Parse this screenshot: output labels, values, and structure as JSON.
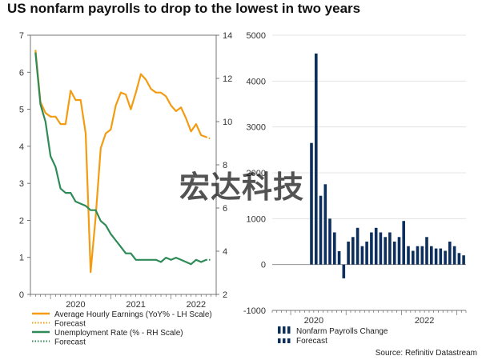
{
  "title": "US nonfarm payrolls to drop to the lowest in two years",
  "source": "Source: Refinitiv Datastream",
  "watermark": "宏达科技",
  "colors": {
    "earnings": "#f39c12",
    "unemployment": "#2e8b57",
    "payrolls": "#0d2f5e",
    "axis": "#666666",
    "grid": "#dddddd"
  },
  "chart_data": [
    {
      "type": "line",
      "title": "",
      "xlabel": "",
      "x_ticks": [
        "2020",
        "2021",
        "2022"
      ],
      "x_range": [
        "2019-09",
        "2022-10"
      ],
      "y_left_range": [
        0,
        7
      ],
      "y_left_ticks": [
        0,
        1,
        2,
        3,
        4,
        5,
        6,
        7
      ],
      "y_right_range": [
        2,
        14
      ],
      "y_right_ticks": [
        2,
        4,
        6,
        8,
        10,
        12,
        14
      ],
      "grid": false,
      "legend_position": "bottom-left",
      "series": [
        {
          "name": "Average Hourly Earnings (YoY% - LH Scale)",
          "axis": "left",
          "color": "#f39c12",
          "x": [
            "2019-10",
            "2019-11",
            "2019-12",
            "2020-01",
            "2020-02",
            "2020-03",
            "2020-04",
            "2020-05",
            "2020-06",
            "2020-07",
            "2020-08",
            "2020-09",
            "2020-10",
            "2020-11",
            "2020-12",
            "2021-01",
            "2021-02",
            "2021-03",
            "2021-04",
            "2021-05",
            "2021-06",
            "2021-07",
            "2021-08",
            "2021-09",
            "2021-10",
            "2021-11",
            "2021-12",
            "2022-01",
            "2022-02",
            "2022-03",
            "2022-04",
            "2022-05",
            "2022-06",
            "2022-07",
            "2022-08"
          ],
          "values": [
            6.6,
            5.2,
            4.9,
            4.8,
            4.8,
            4.6,
            4.6,
            5.5,
            5.25,
            5.25,
            4.35,
            0.6,
            2.1,
            3.95,
            4.35,
            4.45,
            5.1,
            5.45,
            5.4,
            5.0,
            5.45,
            5.95,
            5.8,
            5.55,
            5.45,
            5.45,
            5.35,
            5.1,
            4.95,
            5.05,
            4.75,
            4.4,
            4.6,
            4.3,
            4.25
          ]
        },
        {
          "name": "Forecast",
          "axis": "left",
          "color": "#f39c12",
          "style": "dotted",
          "x": [
            "2022-08",
            "2022-09"
          ],
          "values": [
            4.25,
            4.2
          ]
        },
        {
          "name": "Unemployment Rate (% - RH Scale)",
          "axis": "right",
          "color": "#2e8b57",
          "x": [
            "2019-10",
            "2019-11",
            "2019-12",
            "2020-01",
            "2020-02",
            "2020-03",
            "2020-04",
            "2020-05",
            "2020-06",
            "2020-07",
            "2020-08",
            "2020-09",
            "2020-10",
            "2020-11",
            "2020-12",
            "2021-01",
            "2021-02",
            "2021-03",
            "2021-04",
            "2021-05",
            "2021-06",
            "2021-07",
            "2021-08",
            "2021-09",
            "2021-10",
            "2021-11",
            "2021-12",
            "2022-01",
            "2022-02",
            "2022-03",
            "2022-04",
            "2022-05",
            "2022-06",
            "2022-07",
            "2022-08"
          ],
          "values": [
            13.2,
            10.8,
            10.0,
            8.4,
            7.9,
            6.9,
            6.7,
            6.7,
            6.3,
            6.2,
            6.1,
            5.9,
            5.9,
            5.4,
            5.2,
            4.8,
            4.5,
            4.2,
            3.9,
            3.9,
            3.6,
            3.6,
            3.6,
            3.6,
            3.6,
            3.5,
            3.7,
            3.6,
            3.7,
            3.6,
            3.5,
            3.4,
            3.6,
            3.5,
            3.6
          ]
        },
        {
          "name": "Forecast",
          "axis": "right",
          "color": "#2e8b57",
          "style": "dotted",
          "x": [
            "2022-08",
            "2022-09"
          ],
          "values": [
            3.6,
            3.6
          ]
        }
      ]
    },
    {
      "type": "bar",
      "title": "",
      "x_ticks": [
        "2020",
        "2022"
      ],
      "y_range": [
        -1000,
        5000
      ],
      "y_ticks": [
        -1000,
        0,
        1000,
        2000,
        3000,
        4000,
        5000
      ],
      "grid": true,
      "legend_position": "bottom-left",
      "series": [
        {
          "name": "Nonfarm Payrolls Change",
          "color": "#0d2f5e",
          "x": [
            "2020-05",
            "2020-06",
            "2020-07",
            "2020-08",
            "2020-09",
            "2020-10",
            "2020-11",
            "2020-12",
            "2021-01",
            "2021-02",
            "2021-03",
            "2021-04",
            "2021-05",
            "2021-06",
            "2021-07",
            "2021-08",
            "2021-09",
            "2021-10",
            "2021-11",
            "2021-12",
            "2022-01",
            "2022-02",
            "2022-03",
            "2022-04",
            "2022-05",
            "2022-06",
            "2022-07",
            "2022-08"
          ],
          "values": [
            2650,
            4600,
            1500,
            1750,
            1000,
            700,
            290,
            -300,
            500,
            600,
            800,
            400,
            500,
            700,
            800,
            700,
            600,
            700,
            500,
            600,
            950,
            400,
            300,
            400,
            400,
            600,
            400,
            350
          ]
        },
        {
          "name": "Forecast",
          "color": "#0d2f5e",
          "style": "dotted",
          "x": [
            "2022-09",
            "2022-10",
            "2022-11",
            "2022-12",
            "2023-01",
            "2023-02"
          ],
          "values": [
            350,
            300,
            500,
            400,
            250,
            200
          ]
        }
      ]
    }
  ]
}
